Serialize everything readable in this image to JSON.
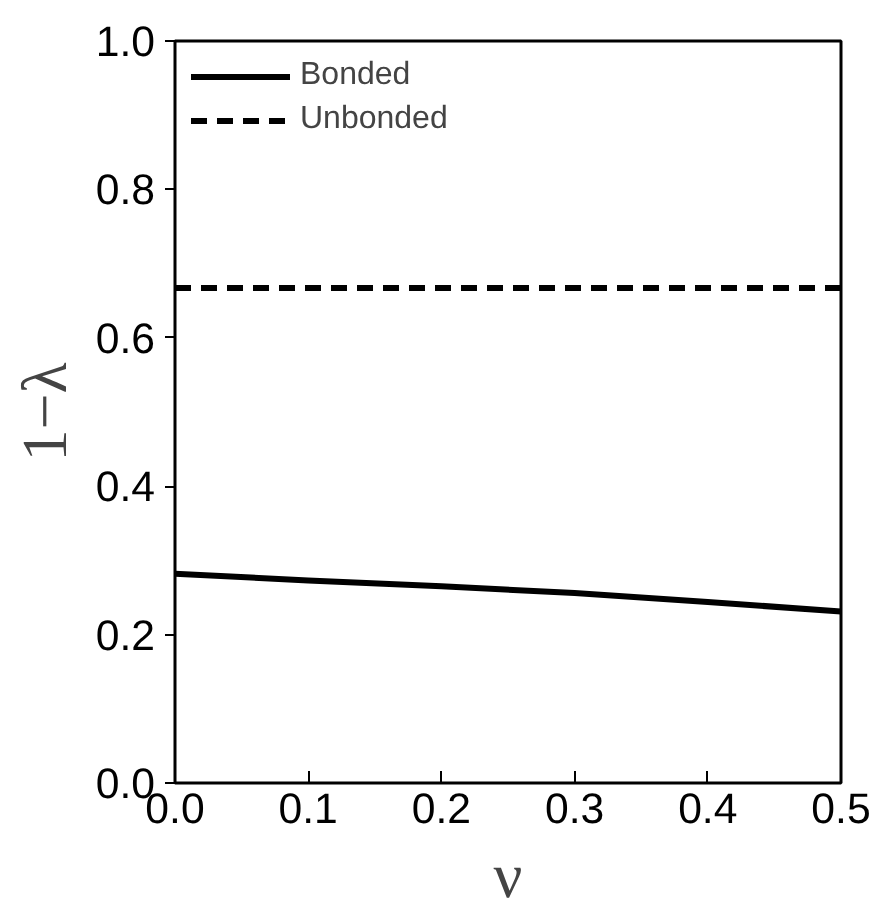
{
  "chart_data": {
    "type": "line",
    "xlabel": "ν",
    "ylabel": "1−λ",
    "xlim": [
      0,
      0.5
    ],
    "ylim": [
      0,
      1
    ],
    "xticks": [
      {
        "value": 0,
        "label": "0.0"
      },
      0.1,
      0.2,
      0.3,
      0.4,
      0.5
    ],
    "yticks": [
      {
        "value": 0,
        "label": "0.0"
      },
      0.2,
      0.4,
      0.6,
      0.8,
      {
        "value": 1,
        "label": "1.0"
      }
    ],
    "grid": false,
    "legend": "top left",
    "marker": "none",
    "series": [
      {
        "name": "Bonded",
        "color": "#000000",
        "line_style": "solid",
        "x": [
          0,
          0.1,
          0.2,
          0.3,
          0.4,
          0.5
        ],
        "values": [
          0.282,
          0.273,
          0.265,
          0.256,
          0.244,
          0.231
        ]
      },
      {
        "name": "Unbonded",
        "color": "#000000",
        "line_style": "dashed",
        "x": [
          0,
          0.5
        ],
        "values": [
          0.667,
          0.667
        ]
      }
    ]
  }
}
